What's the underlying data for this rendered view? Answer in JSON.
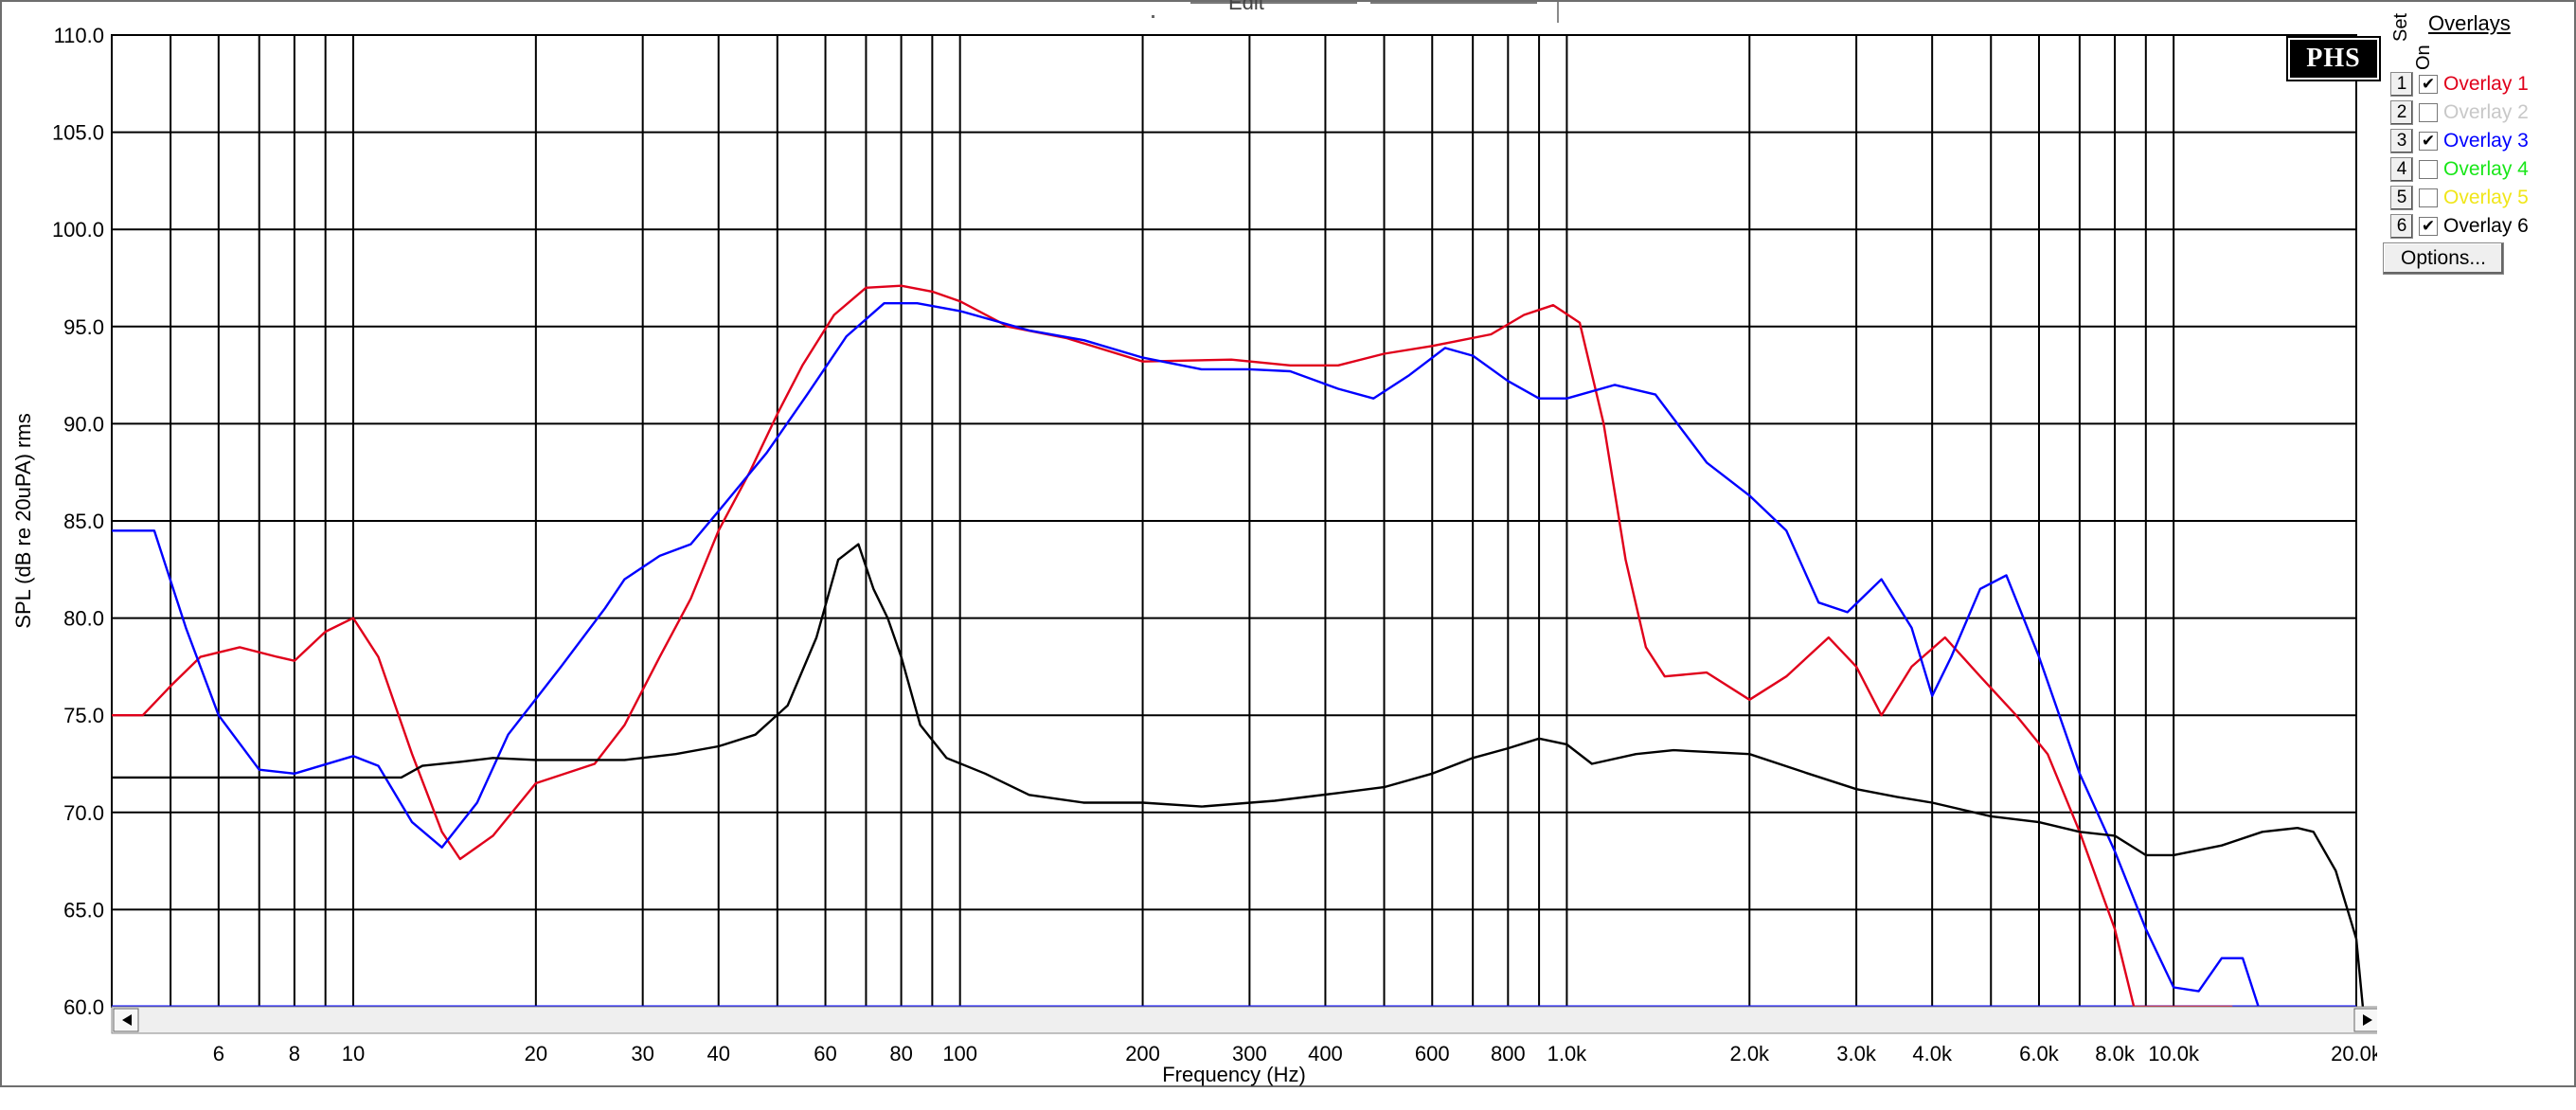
{
  "window": {
    "top_tab_text": "Edit"
  },
  "logo": {
    "text": "PHS"
  },
  "overlays_panel": {
    "title": "Overlays",
    "column_set": "Set",
    "column_on": "On",
    "items": [
      {
        "number": "1",
        "checked": true,
        "label": "Overlay 1",
        "color": "#e0001b"
      },
      {
        "number": "2",
        "checked": false,
        "label": "Overlay 2",
        "color": "#c8c8c8"
      },
      {
        "number": "3",
        "checked": true,
        "label": "Overlay 3",
        "color": "#0000ff"
      },
      {
        "number": "4",
        "checked": false,
        "label": "Overlay 4",
        "color": "#19e619"
      },
      {
        "number": "5",
        "checked": false,
        "label": "Overlay 5",
        "color": "#f0e61a"
      },
      {
        "number": "6",
        "checked": true,
        "label": "Overlay 6",
        "color": "#000000"
      }
    ],
    "options_label": "Options..."
  },
  "colors": {
    "grid": "#000000",
    "background": "#ffffff",
    "baseline": "#0000ff",
    "overlay1": "#e0001b",
    "overlay3": "#0000ff",
    "overlay6": "#000000"
  },
  "chart_data": {
    "type": "line",
    "xlabel": "Frequency (Hz)",
    "ylabel": "SPL (dB re 20uPA) rms",
    "xscale": "log",
    "xlim": [
      4,
      20000
    ],
    "ylim": [
      60,
      110
    ],
    "grid": true,
    "x_tick_values": [
      6,
      8,
      10,
      20,
      30,
      40,
      60,
      80,
      100,
      200,
      300,
      400,
      600,
      800,
      1000,
      2000,
      3000,
      4000,
      6000,
      8000,
      10000,
      20000
    ],
    "x_tick_labels": [
      "6",
      "8",
      "10",
      "20",
      "30",
      "40",
      "60",
      "80",
      "100",
      "200",
      "300",
      "400",
      "600",
      "800",
      "1.0k",
      "2.0k",
      "3.0k",
      "4.0k",
      "6.0k",
      "8.0k",
      "10.0k",
      "20.0k"
    ],
    "y_tick_values": [
      60,
      65,
      70,
      75,
      80,
      85,
      90,
      95,
      100,
      105,
      110
    ],
    "y_tick_labels": [
      "60.0",
      "65.0",
      "70.0",
      "75.0",
      "80.0",
      "85.0",
      "90.0",
      "95.0",
      "100.0",
      "105.0",
      "110.0"
    ],
    "series": [
      {
        "name": "Overlay 1",
        "color": "#e0001b",
        "points": [
          [
            4,
            75
          ],
          [
            4.5,
            75
          ],
          [
            5,
            76.5
          ],
          [
            5.6,
            78
          ],
          [
            6.5,
            78.5
          ],
          [
            7.5,
            78
          ],
          [
            8,
            77.8
          ],
          [
            9,
            79.3
          ],
          [
            10,
            80
          ],
          [
            11,
            78
          ],
          [
            12.5,
            73
          ],
          [
            14,
            69
          ],
          [
            15,
            67.6
          ],
          [
            17,
            68.8
          ],
          [
            20,
            71.5
          ],
          [
            25,
            72.5
          ],
          [
            28,
            74.5
          ],
          [
            32,
            78
          ],
          [
            36,
            81
          ],
          [
            40,
            84.5
          ],
          [
            45,
            87.5
          ],
          [
            50,
            90.5
          ],
          [
            55,
            93
          ],
          [
            62,
            95.6
          ],
          [
            70,
            97
          ],
          [
            80,
            97.1
          ],
          [
            90,
            96.8
          ],
          [
            100,
            96.3
          ],
          [
            120,
            95
          ],
          [
            150,
            94.4
          ],
          [
            200,
            93.2
          ],
          [
            280,
            93.3
          ],
          [
            350,
            93
          ],
          [
            420,
            93
          ],
          [
            500,
            93.6
          ],
          [
            600,
            94
          ],
          [
            750,
            94.6
          ],
          [
            850,
            95.6
          ],
          [
            950,
            96.1
          ],
          [
            1050,
            95.2
          ],
          [
            1150,
            90
          ],
          [
            1250,
            83
          ],
          [
            1350,
            78.5
          ],
          [
            1450,
            77
          ],
          [
            1700,
            77.2
          ],
          [
            2000,
            75.8
          ],
          [
            2300,
            77
          ],
          [
            2700,
            79
          ],
          [
            3000,
            77.5
          ],
          [
            3300,
            75
          ],
          [
            3700,
            77.5
          ],
          [
            4200,
            79
          ],
          [
            4800,
            77
          ],
          [
            5500,
            75
          ],
          [
            6200,
            73
          ],
          [
            7000,
            69
          ],
          [
            8000,
            64
          ],
          [
            8600,
            60
          ],
          [
            12000,
            60
          ],
          [
            12500,
            60
          ]
        ]
      },
      {
        "name": "Overlay 3",
        "color": "#0000ff",
        "points": [
          [
            4,
            84.5
          ],
          [
            4.7,
            84.5
          ],
          [
            5.3,
            79.5
          ],
          [
            6,
            75
          ],
          [
            7,
            72.2
          ],
          [
            8,
            72
          ],
          [
            10,
            72.9
          ],
          [
            11,
            72.4
          ],
          [
            12.5,
            69.5
          ],
          [
            14,
            68.2
          ],
          [
            16,
            70.5
          ],
          [
            18,
            74
          ],
          [
            22,
            77.5
          ],
          [
            26,
            80.5
          ],
          [
            28,
            82
          ],
          [
            32,
            83.2
          ],
          [
            36,
            83.8
          ],
          [
            40,
            85.5
          ],
          [
            48,
            88.5
          ],
          [
            56,
            91.5
          ],
          [
            65,
            94.5
          ],
          [
            75,
            96.2
          ],
          [
            85,
            96.2
          ],
          [
            100,
            95.8
          ],
          [
            130,
            94.8
          ],
          [
            160,
            94.3
          ],
          [
            200,
            93.4
          ],
          [
            250,
            92.8
          ],
          [
            300,
            92.8
          ],
          [
            350,
            92.7
          ],
          [
            420,
            91.8
          ],
          [
            480,
            91.3
          ],
          [
            550,
            92.5
          ],
          [
            630,
            93.9
          ],
          [
            700,
            93.5
          ],
          [
            800,
            92.2
          ],
          [
            900,
            91.3
          ],
          [
            1000,
            91.3
          ],
          [
            1200,
            92
          ],
          [
            1400,
            91.5
          ],
          [
            1700,
            88
          ],
          [
            2000,
            86.3
          ],
          [
            2300,
            84.5
          ],
          [
            2600,
            80.8
          ],
          [
            2900,
            80.3
          ],
          [
            3300,
            82
          ],
          [
            3700,
            79.5
          ],
          [
            4000,
            76
          ],
          [
            4300,
            78
          ],
          [
            4800,
            81.5
          ],
          [
            5300,
            82.2
          ],
          [
            6000,
            78
          ],
          [
            7000,
            72
          ],
          [
            8000,
            68
          ],
          [
            9000,
            64
          ],
          [
            10000,
            61
          ],
          [
            11000,
            60.8
          ],
          [
            12000,
            62.5
          ],
          [
            13000,
            62.5
          ],
          [
            13800,
            60
          ]
        ]
      },
      {
        "name": "Overlay 6",
        "color": "#000000",
        "points": [
          [
            4,
            71.8
          ],
          [
            12,
            71.8
          ],
          [
            13,
            72.4
          ],
          [
            15,
            72.6
          ],
          [
            17,
            72.8
          ],
          [
            20,
            72.7
          ],
          [
            24,
            72.7
          ],
          [
            28,
            72.7
          ],
          [
            34,
            73
          ],
          [
            40,
            73.4
          ],
          [
            46,
            74
          ],
          [
            52,
            75.5
          ],
          [
            58,
            79
          ],
          [
            63,
            83
          ],
          [
            68,
            83.8
          ],
          [
            72,
            81.5
          ],
          [
            76,
            80
          ],
          [
            80,
            78
          ],
          [
            86,
            74.5
          ],
          [
            95,
            72.8
          ],
          [
            110,
            72
          ],
          [
            130,
            70.9
          ],
          [
            160,
            70.5
          ],
          [
            200,
            70.5
          ],
          [
            250,
            70.3
          ],
          [
            330,
            70.6
          ],
          [
            420,
            71
          ],
          [
            500,
            71.3
          ],
          [
            600,
            72
          ],
          [
            700,
            72.8
          ],
          [
            800,
            73.3
          ],
          [
            900,
            73.8
          ],
          [
            1000,
            73.5
          ],
          [
            1100,
            72.5
          ],
          [
            1300,
            73
          ],
          [
            1500,
            73.2
          ],
          [
            2000,
            73
          ],
          [
            2500,
            72
          ],
          [
            3000,
            71.2
          ],
          [
            3500,
            70.8
          ],
          [
            4000,
            70.5
          ],
          [
            5000,
            69.8
          ],
          [
            6000,
            69.5
          ],
          [
            7000,
            69
          ],
          [
            8000,
            68.8
          ],
          [
            9000,
            67.8
          ],
          [
            10000,
            67.8
          ],
          [
            12000,
            68.3
          ],
          [
            14000,
            69
          ],
          [
            16000,
            69.2
          ],
          [
            17000,
            69
          ],
          [
            18500,
            67
          ],
          [
            20000,
            63.5
          ],
          [
            20500,
            60
          ]
        ]
      }
    ]
  }
}
